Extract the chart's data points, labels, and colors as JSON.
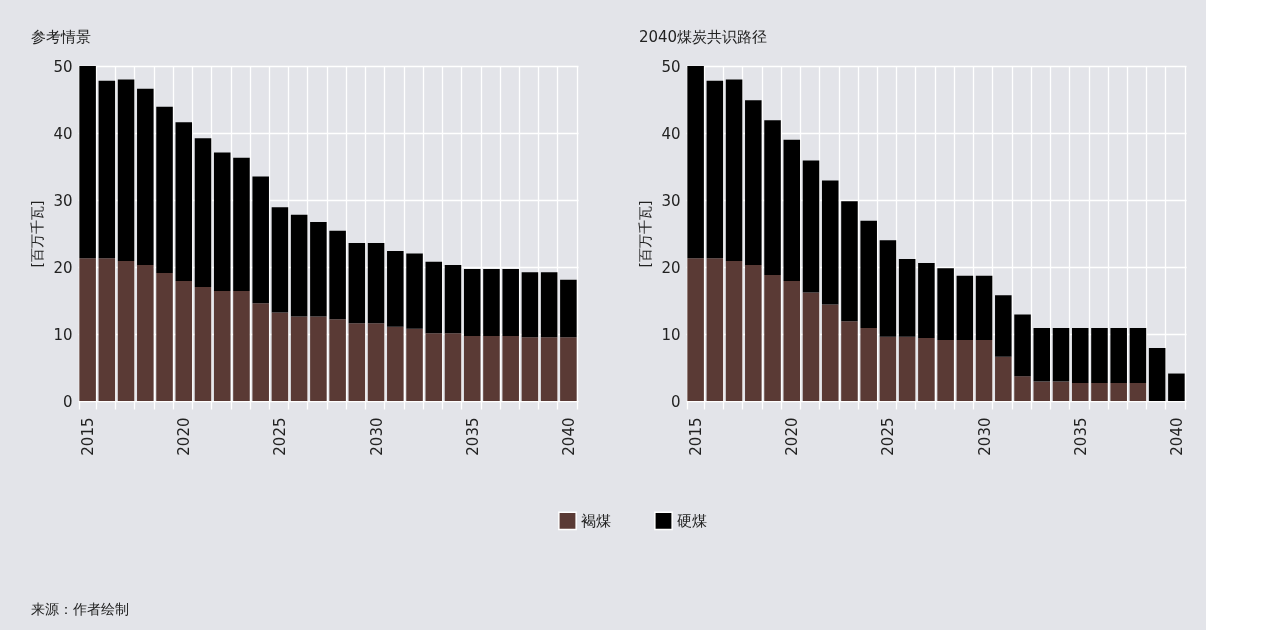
{
  "chart_data": [
    {
      "type": "bar",
      "stacked": true,
      "title": "参考情景",
      "ylabel": "[百万千瓦]",
      "categories": [
        "2015",
        null,
        null,
        null,
        null,
        "2020",
        null,
        null,
        null,
        null,
        "2025",
        null,
        null,
        null,
        null,
        "2030",
        null,
        null,
        null,
        null,
        "2035",
        null,
        null,
        null,
        null,
        "2040"
      ],
      "series": [
        {
          "name": "褐煤",
          "color": "#5a3a35",
          "values": [
            21.3,
            21.3,
            20.9,
            20.3,
            19.1,
            17.9,
            17.0,
            16.4,
            16.4,
            14.6,
            13.2,
            12.6,
            12.6,
            12.2,
            11.6,
            11.6,
            11.1,
            10.8,
            10.1,
            10.1,
            9.7,
            9.7,
            9.7,
            9.5,
            9.5,
            9.5
          ]
        },
        {
          "name": "硬煤",
          "color": "#000000",
          "values": [
            28.7,
            26.5,
            27.1,
            26.3,
            24.8,
            23.7,
            22.2,
            20.7,
            19.9,
            18.9,
            15.7,
            15.2,
            14.1,
            13.2,
            12.0,
            12.0,
            11.3,
            11.2,
            10.7,
            10.2,
            10.0,
            10.0,
            10.0,
            9.7,
            9.7,
            8.6
          ]
        }
      ],
      "ylim": [
        0,
        50
      ],
      "yticks": [
        0,
        10,
        20,
        30,
        40,
        50
      ],
      "grid": true,
      "legend": "bottom",
      "annotations": [
        "来源：作者绘制"
      ]
    },
    {
      "type": "bar",
      "stacked": true,
      "title": "2040煤炭共识路径",
      "ylabel": "[百万千瓦]",
      "categories": [
        "2015",
        null,
        null,
        null,
        null,
        "2020",
        null,
        null,
        null,
        null,
        "2025",
        null,
        null,
        null,
        null,
        "2030",
        null,
        null,
        null,
        null,
        "2035",
        null,
        null,
        null,
        null,
        "2040"
      ],
      "series": [
        {
          "name": "褐煤",
          "color": "#5a3a35",
          "values": [
            21.3,
            21.3,
            20.9,
            20.3,
            18.8,
            17.9,
            16.2,
            14.4,
            11.9,
            10.9,
            9.6,
            9.6,
            9.4,
            9.1,
            9.1,
            9.1,
            6.6,
            3.7,
            2.9,
            2.9,
            2.7,
            2.7,
            2.7,
            2.7,
            0,
            0
          ]
        },
        {
          "name": "硬煤",
          "color": "#000000",
          "values": [
            28.7,
            26.5,
            27.1,
            24.6,
            23.1,
            21.1,
            19.7,
            18.5,
            17.9,
            16.0,
            14.4,
            11.6,
            11.2,
            10.7,
            9.6,
            9.6,
            9.2,
            9.2,
            8.0,
            8.0,
            8.2,
            8.2,
            8.2,
            8.2,
            7.9,
            4.1
          ]
        }
      ],
      "ylim": [
        0,
        50
      ],
      "yticks": [
        0,
        10,
        20,
        30,
        40,
        50
      ],
      "grid": true,
      "legend": "bottom"
    }
  ]
}
